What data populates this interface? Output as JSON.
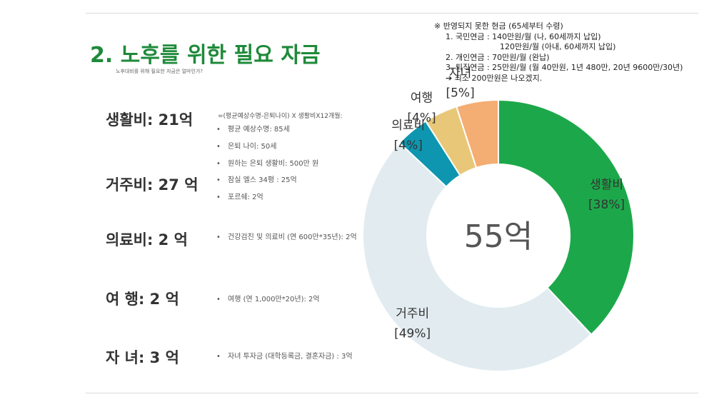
{
  "title": "2. 노후를 위한 필요 자금",
  "subtitle": "노후대비를 위해 필요한 자금은 얼마인가?",
  "categories": [
    {
      "label": "생활비: 21억",
      "color": "#1ea34a"
    },
    {
      "label": "거주비: 27 억",
      "color": "#8fb6c9"
    },
    {
      "label": "의료비: 2 억",
      "color": "#0e96b0"
    },
    {
      "label": "여   행: 2 억",
      "color": "#e3b66a"
    },
    {
      "label": "자   녀: 3 억",
      "color": "#e68a3a"
    }
  ],
  "living_formula": "=(평균예상수명-은퇴나이) X 생활비X12개월:",
  "living_details": [
    "평균 예상수명: 85세",
    "은퇴 나이: 50세",
    "원하는 은퇴 생활비: 500만 원"
  ],
  "housing_details": [
    "잠실 엘스 34평 : 25억",
    "포르쉐: 2억"
  ],
  "medical_details": [
    "건강검진 및 의료비 (연 600만*35년): 2억"
  ],
  "travel_details": [
    "여행 (연 1,000만*20년): 2억"
  ],
  "children_details": [
    "자녀 투자금 (대학등록금, 결혼자금) : 3억"
  ],
  "note": {
    "header": "※ 반영되지 못한 현금 (65세부터 수령)",
    "lines": [
      "1. 국민연금 : 140만원/월 (나, 60세까지 납입)",
      "120만원/월 (아내, 60세까지 납입)",
      "2. 개인연금 : 70만원/월 (완납)",
      "3. 퇴직연금 : 25만원/월 (월 40만원, 1년 480만, 20년 9600만/30년)",
      "➔ 최소 200만원은 나오겠지."
    ]
  },
  "chart_data": {
    "type": "pie",
    "center_label": "55억",
    "slices": [
      {
        "name": "생활비",
        "pct_label": "[38%]",
        "value": 38,
        "color": "#1ca84a"
      },
      {
        "name": "거주비",
        "pct_label": "[49%]",
        "value": 49,
        "color": "#e2ecf0"
      },
      {
        "name": "의료비",
        "pct_label": "[4%]",
        "value": 4,
        "color": "#0e96b0"
      },
      {
        "name": "여행",
        "pct_label": "[4%]",
        "value": 4,
        "color": "#e8c878"
      },
      {
        "name": "자녀",
        "pct_label": "[5%]",
        "value": 5,
        "color": "#f4ad72"
      }
    ]
  }
}
